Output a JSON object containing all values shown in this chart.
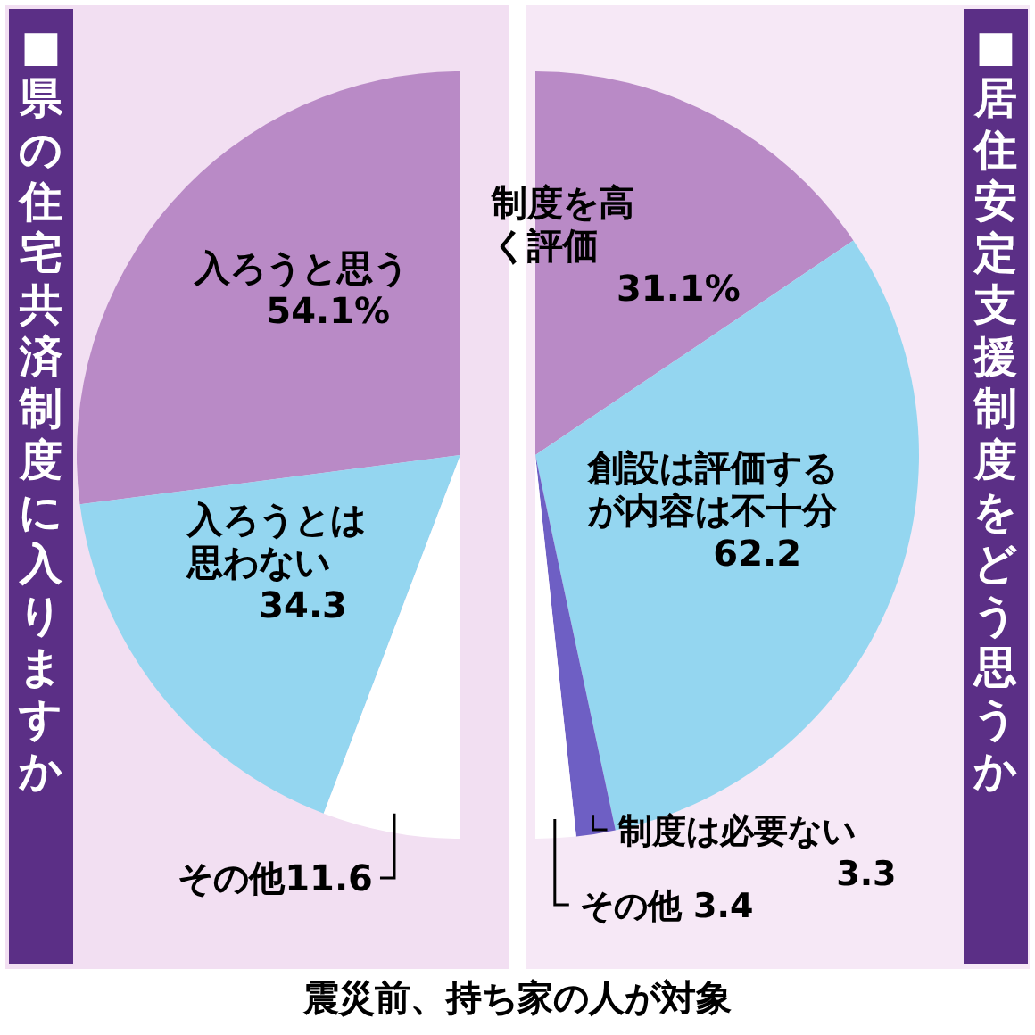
{
  "chart_data": [
    {
      "type": "pie",
      "title": "■県の住宅共済制度に入りますか",
      "categories": [
        "入ろうと思う",
        "入ろうとは思わない",
        "その他"
      ],
      "values": [
        54.1,
        34.3,
        11.6
      ],
      "value_labels": [
        "54.1%",
        "34.3",
        "11.6"
      ],
      "colors": [
        "#b98ac6",
        "#94d6f0",
        "#ffffff"
      ]
    },
    {
      "type": "pie",
      "title": "■居住安定支援制度をどう思うか",
      "categories": [
        "制度を高く評価",
        "創設は評価するが内容は不十分",
        "制度は必要ない",
        "その他"
      ],
      "values": [
        31.1,
        62.2,
        3.3,
        3.4
      ],
      "value_labels": [
        "31.1%",
        "62.2",
        "3.3",
        "3.4"
      ],
      "colors": [
        "#b98ac6",
        "#94d6f0",
        "#6e5fc4",
        "#ffffff"
      ],
      "annotations": [
        "震災前、持ち家の人が対象"
      ]
    }
  ]
}
